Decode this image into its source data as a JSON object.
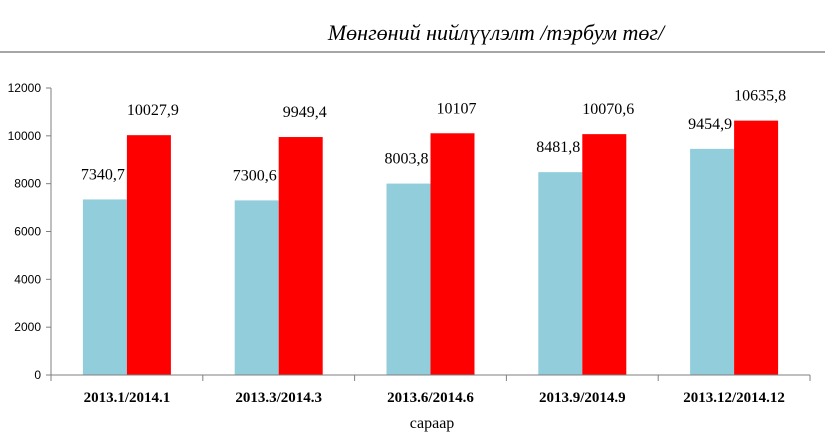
{
  "chart_data": {
    "type": "bar",
    "title": "Мөнгөний нийлүүлэлт /тэрбум төг/",
    "xlabel": "сараар",
    "ylabel": "",
    "ylim": [
      0,
      12000
    ],
    "yticks": [
      0,
      2000,
      4000,
      6000,
      8000,
      10000,
      12000
    ],
    "ytick_labels": [
      "0",
      "2000",
      "4000",
      "6000",
      "8000",
      "10000",
      "12000"
    ],
    "categories": [
      "2013.1/2014.1",
      "2013.3/2014.3",
      "2013.6/2014.6",
      "2013.9/2014.9",
      "2013.12/2014.12"
    ],
    "series": [
      {
        "color": "#92cddc",
        "values": [
          7340.7,
          7300.6,
          8003.8,
          8481.8,
          9454.9
        ],
        "labels": [
          "7340,7",
          "7300,6",
          "8003,8",
          "8481,8",
          "9454,9"
        ]
      },
      {
        "color": "#ff0000",
        "values": [
          10027.9,
          9949.4,
          10107,
          10070.6,
          10635.8
        ],
        "labels": [
          "10027,9",
          "9949,4",
          "10107",
          "10070,6",
          "10635,8"
        ]
      }
    ],
    "grid": false,
    "legend": "none"
  }
}
